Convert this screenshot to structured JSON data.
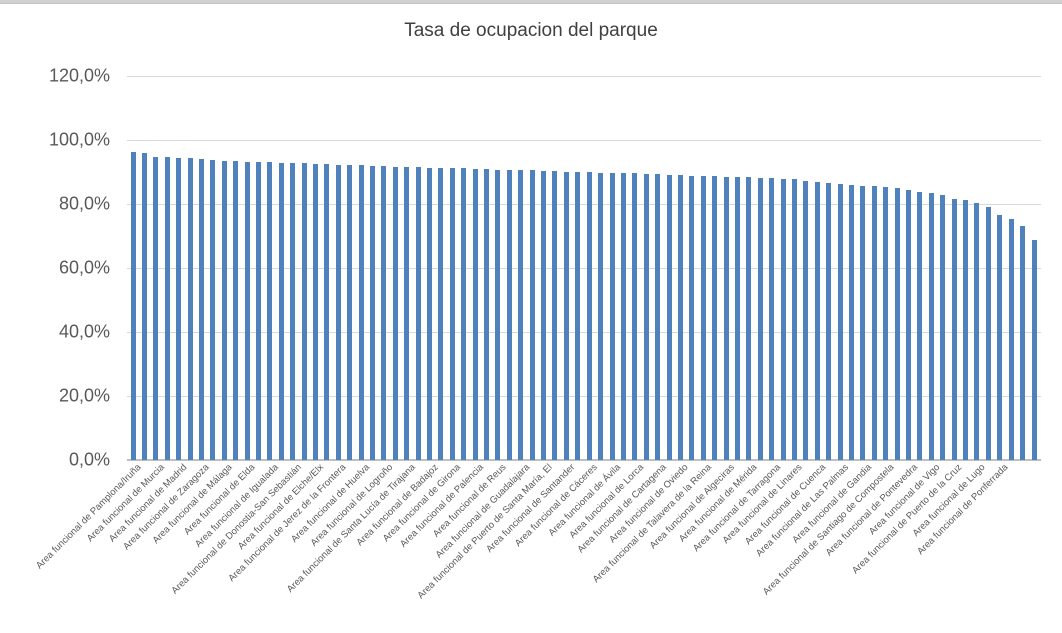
{
  "chart_data": {
    "type": "bar",
    "title": "Tasa de ocupacion del parque",
    "xlabel": "",
    "ylabel": "",
    "ylim": [
      0,
      120
    ],
    "yticks": [
      "0,0%",
      "20,0%",
      "40,0%",
      "60,0%",
      "80,0%",
      "100,0%",
      "120,0%"
    ],
    "ytick_values": [
      0,
      20,
      40,
      60,
      80,
      100,
      120
    ],
    "grid": true,
    "legend": "none",
    "bar_color": "#4f81bd",
    "label_every": 2,
    "visible_labels": [
      "Area funcional de Pamplona/Iruña",
      "Area funcional de Murcia",
      "Area funcional de Madrid",
      "Area funcional de Zaragoza",
      "Area funcional de Málaga",
      "Area funcional de Elda",
      "Area funcional de Igualada",
      "Area funcional de Donostia-San Sebastián",
      "Area funcional de Elche/Elx",
      "Area funcional de Jerez de la Frontera",
      "Area funcional de Huelva",
      "Area funcional de Logroño",
      "Area funcional de Santa Lucía de Tirajana",
      "Area funcional de Badajoz",
      "Area funcional de Girona",
      "Area funcional de Palencia",
      "Area funcional de Reus",
      "Area funcional de Guadalajara",
      "Area funcional de Puerto de Santa María, El",
      "Area funcional de Santander",
      "Area funcional de Cáceres",
      "Area funcional de Ávila",
      "Area funcional de Lorca",
      "Area funcional de Cartagena",
      "Area funcional de Oviedo",
      "Area funcional de Talavera de la Reina",
      "Area funcional de Algeciras",
      "Area funcional de Mérida",
      "Area funcional de Tarragona",
      "Area funcional de Linares",
      "Area funcional de Cuenca",
      "Area funcional de Las Palmas",
      "Area funcional de Gandia",
      "Area funcional de Santiago de Compostela",
      "Area funcional de Pontevedra",
      "Area funcional de Vigo",
      "Area funcional de Puerto de la Cruz",
      "Area funcional de Lugo",
      "Area funcional de Ponferrada"
    ],
    "values": [
      96.3,
      95.8,
      94.8,
      94.6,
      94.4,
      94.3,
      94.2,
      93.8,
      93.5,
      93.3,
      93.2,
      93.1,
      93.0,
      92.9,
      92.8,
      92.7,
      92.6,
      92.4,
      92.3,
      92.2,
      92.1,
      92.0,
      91.8,
      91.7,
      91.6,
      91.5,
      91.4,
      91.3,
      91.2,
      91.1,
      90.9,
      90.8,
      90.7,
      90.6,
      90.6,
      90.5,
      90.4,
      90.3,
      90.1,
      90.0,
      89.9,
      89.8,
      89.7,
      89.7,
      89.6,
      89.5,
      89.4,
      89.2,
      89.0,
      88.8,
      88.7,
      88.6,
      88.5,
      88.4,
      88.3,
      88.2,
      88.1,
      87.9,
      87.7,
      87.2,
      86.9,
      86.6,
      86.2,
      86.0,
      85.7,
      85.5,
      85.3,
      84.9,
      84.3,
      83.9,
      83.3,
      82.7,
      81.6,
      81.2,
      80.2,
      79.1,
      76.6,
      75.3,
      73.2,
      68.9
    ]
  }
}
